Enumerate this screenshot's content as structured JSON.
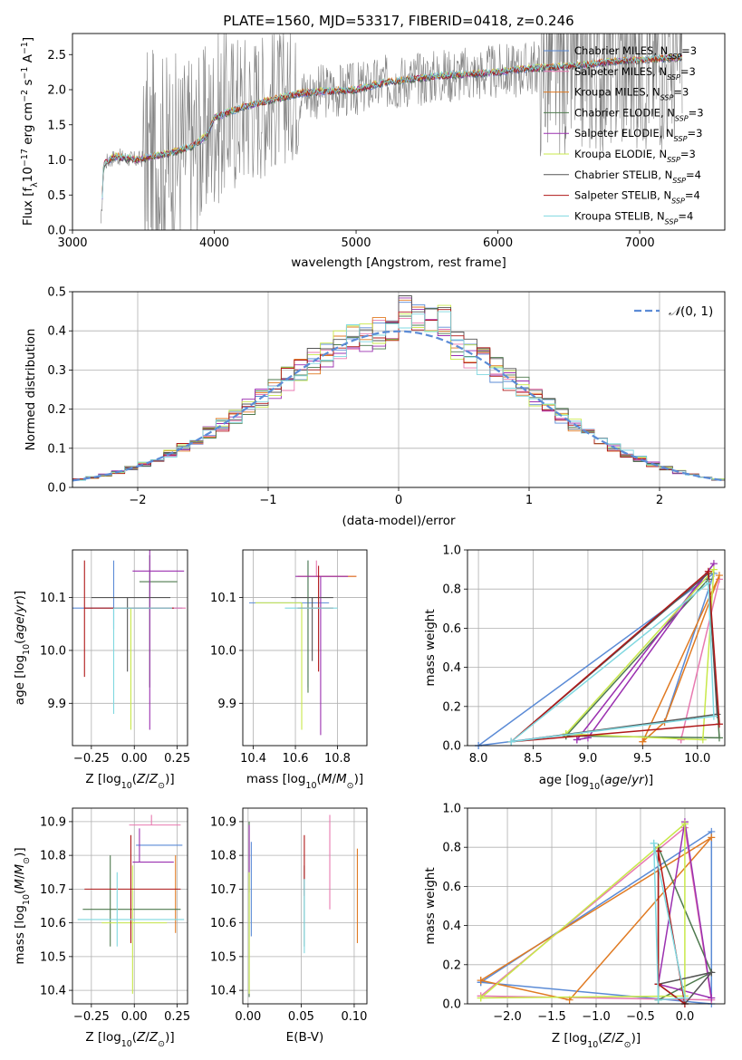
{
  "title": "PLATE=1560, MJD=53317, FIBERID=0418, z=0.246",
  "series_labels": [
    "Chabrier MILES, N_SSP=3",
    "Salpeter MILES, N_SSP=3",
    "Kroupa MILES, N_SSP=3",
    "Chabrier ELODIE, N_SSP=3",
    "Salpeter ELODIE, N_SSP=3",
    "Kroupa ELODIE, N_SSP=3",
    "Chabrier STELIB, N_SSP=4",
    "Salpeter STELIB, N_SSP=4",
    "Kroupa STELIB, N_SSP=4"
  ],
  "series_colors": [
    "#5B8BD6",
    "#E879B0",
    "#E07A22",
    "#4E7A4E",
    "#9B30B0",
    "#C8E84A",
    "#555555",
    "#B01818",
    "#7FD8E0"
  ],
  "chart_data": [
    {
      "id": "spectrum",
      "type": "line",
      "xlabel": "wavelength [Angstrom, rest frame]",
      "ylabel": "Flux [f_λ 10^-17 erg cm^-2 s^-1 A^-1]",
      "xlim": [
        3000,
        7600
      ],
      "ylim": [
        0,
        2.8
      ],
      "xticks": [
        3000,
        4000,
        5000,
        6000,
        7000
      ],
      "yticks": [
        0.0,
        0.5,
        1.0,
        1.5,
        2.0,
        2.5
      ],
      "legend": "upper right",
      "grid": false,
      "model_continuum": {
        "x": [
          3200,
          3220,
          3300,
          3450,
          3500,
          3700,
          3850,
          3950,
          4000,
          4200,
          4400,
          4600,
          4800,
          5000,
          5200,
          5400,
          5600,
          5800,
          6000,
          6200,
          6400,
          6600,
          6800,
          7000,
          7200,
          7300
        ],
        "y": [
          0.0,
          0.95,
          1.05,
          1.0,
          1.02,
          1.1,
          1.2,
          1.35,
          1.6,
          1.75,
          1.85,
          1.95,
          1.98,
          2.0,
          2.1,
          2.15,
          2.2,
          2.22,
          2.25,
          2.3,
          2.32,
          2.35,
          2.4,
          2.42,
          2.45,
          2.45
        ]
      }
    },
    {
      "id": "residuals",
      "type": "histogram",
      "xlabel": "(data-model)/error",
      "ylabel": "Normed distribution",
      "xlim": [
        -2.5,
        2.5
      ],
      "ylim": [
        0,
        0.5
      ],
      "xticks": [
        -2,
        -1,
        0,
        1,
        2
      ],
      "yticks": [
        0.0,
        0.1,
        0.2,
        0.3,
        0.4,
        0.5
      ],
      "grid": true,
      "legend": "upper right",
      "reference_curve": {
        "name": "N(0,1)",
        "mean": 0,
        "sigma": 1
      },
      "bin_width": 0.1
    },
    {
      "id": "age-vs-Z",
      "type": "scatter",
      "xlabel": "Z [log10(Z/Z_sun)]",
      "ylabel": "age [log10(age/yr)]",
      "xlim": [
        -0.36,
        0.31
      ],
      "ylim": [
        9.82,
        10.19
      ],
      "xticks": [
        -0.25,
        0.0,
        0.25
      ],
      "yticks": [
        9.9,
        10.0,
        10.1
      ],
      "grid": true,
      "points": [
        {
          "x": -0.12,
          "y": 10.08,
          "xerr": [
            0.38,
            0.4
          ],
          "yerr": [
            0.04,
            0.09
          ]
        },
        {
          "x": 0.05,
          "y": 10.08,
          "xerr": [
            0.06,
            0.25
          ],
          "yerr": [
            0.0,
            0.0
          ]
        },
        {
          "x": -0.13,
          "y": 10.08,
          "xerr": [
            0.0,
            0.0
          ],
          "yerr": [
            0.0,
            0.0
          ]
        },
        {
          "x": 0.09,
          "y": 10.13,
          "xerr": [
            0.06,
            0.16
          ],
          "yerr": [
            0.2,
            0.05
          ]
        },
        {
          "x": 0.09,
          "y": 10.15,
          "xerr": [
            0.1,
            0.2
          ],
          "yerr": [
            0.3,
            0.04
          ]
        },
        {
          "x": -0.02,
          "y": 10.08,
          "xerr": [
            0.0,
            0.0
          ],
          "yerr": [
            0.23,
            0.0
          ]
        },
        {
          "x": -0.04,
          "y": 10.1,
          "xerr": [
            0.21,
            0.25
          ],
          "yerr": [
            0.14,
            0.0
          ]
        },
        {
          "x": -0.29,
          "y": 10.08,
          "xerr": [
            0.0,
            0.52
          ],
          "yerr": [
            0.13,
            0.09
          ]
        },
        {
          "x": -0.12,
          "y": 10.08,
          "xerr": [
            0.0,
            0.34
          ],
          "yerr": [
            0.2,
            0.0
          ]
        }
      ]
    },
    {
      "id": "age-vs-mass",
      "type": "scatter",
      "xlabel": "mass [log10(M/M_sun)]",
      "ylabel": "",
      "xlim": [
        10.35,
        10.94
      ],
      "ylim": [
        9.82,
        10.19
      ],
      "xticks": [
        10.4,
        10.6,
        10.8
      ],
      "yticks": [
        9.9,
        10.0,
        10.1
      ],
      "grid": true,
      "points": [
        {
          "x": 10.66,
          "y": 10.09,
          "xerr": [
            0.28,
            0.1
          ],
          "yerr": [
            0.16,
            0.08
          ]
        },
        {
          "x": 10.7,
          "y": 10.14,
          "xerr": [
            0.0,
            0.19
          ],
          "yerr": [
            0.0,
            0.03
          ]
        },
        {
          "x": 10.72,
          "y": 10.14,
          "xerr": [
            0.11,
            0.17
          ],
          "yerr": [
            0.0,
            0.0
          ]
        },
        {
          "x": 10.66,
          "y": 10.09,
          "xerr": [
            0.0,
            0.0
          ],
          "yerr": [
            0.17,
            0.08
          ]
        },
        {
          "x": 10.72,
          "y": 10.14,
          "xerr": [
            0.12,
            0.13
          ],
          "yerr": [
            0.3,
            0.0
          ]
        },
        {
          "x": 10.63,
          "y": 10.09,
          "xerr": [
            0.22,
            0.0
          ],
          "yerr": [
            0.24,
            0.0
          ]
        },
        {
          "x": 10.68,
          "y": 10.1,
          "xerr": [
            0.1,
            0.1
          ],
          "yerr": [
            0.12,
            0.0
          ]
        },
        {
          "x": 10.71,
          "y": 10.08,
          "xerr": [
            0.1,
            0.07
          ],
          "yerr": [
            0.12,
            0.08
          ]
        },
        {
          "x": 10.6,
          "y": 10.08,
          "xerr": [
            0.05,
            0.2
          ],
          "yerr": [
            0.0,
            0.0
          ]
        }
      ]
    },
    {
      "id": "weight-vs-age",
      "type": "line",
      "xlabel": "age [log10(age/yr)]",
      "ylabel": "mass weight",
      "xlim": [
        7.9,
        10.25
      ],
      "ylim": [
        0.0,
        1.0
      ],
      "xticks": [
        8.0,
        8.5,
        9.0,
        9.5,
        10.0
      ],
      "yticks": [
        0.0,
        0.2,
        0.4,
        0.6,
        0.8,
        1.0
      ],
      "grid": true,
      "series": [
        {
          "values": [
            [
              8.0,
              0.0
            ],
            [
              9.7,
              0.12
            ],
            [
              10.15,
              0.88
            ],
            [
              8.0,
              0.0
            ]
          ]
        },
        {
          "values": [
            [
              9.85,
              0.03
            ],
            [
              10.2,
              0.85
            ],
            [
              9.85,
              0.03
            ]
          ]
        },
        {
          "values": [
            [
              9.5,
              0.02
            ],
            [
              9.7,
              0.12
            ],
            [
              10.2,
              0.87
            ],
            [
              9.5,
              0.02
            ]
          ]
        },
        {
          "values": [
            [
              8.8,
              0.05
            ],
            [
              10.1,
              0.85
            ],
            [
              10.2,
              0.04
            ],
            [
              8.8,
              0.05
            ]
          ]
        },
        {
          "values": [
            [
              8.9,
              0.03
            ],
            [
              9.0,
              0.04
            ],
            [
              10.15,
              0.93
            ],
            [
              8.9,
              0.03
            ]
          ]
        },
        {
          "values": [
            [
              8.8,
              0.06
            ],
            [
              10.05,
              0.03
            ],
            [
              10.15,
              0.9
            ],
            [
              8.8,
              0.06
            ]
          ]
        },
        {
          "values": [
            [
              8.3,
              0.02
            ],
            [
              10.1,
              0.88
            ],
            [
              10.18,
              0.16
            ],
            [
              8.3,
              0.02
            ]
          ]
        },
        {
          "values": [
            [
              8.3,
              0.02
            ],
            [
              10.1,
              0.89
            ],
            [
              10.2,
              0.11
            ],
            [
              8.3,
              0.02
            ]
          ]
        },
        {
          "values": [
            [
              8.3,
              0.02
            ],
            [
              10.1,
              0.83
            ],
            [
              10.15,
              0.15
            ],
            [
              8.3,
              0.02
            ]
          ]
        }
      ]
    },
    {
      "id": "mass-vs-Z",
      "type": "scatter",
      "xlabel": "Z [log10(Z/Z_sun)]",
      "ylabel": "mass [log10(M/M_sun)]",
      "xlim": [
        -0.36,
        0.31
      ],
      "ylim": [
        10.36,
        10.94
      ],
      "xticks": [
        -0.25,
        0.0,
        0.25
      ],
      "yticks": [
        10.4,
        10.5,
        10.6,
        10.7,
        10.8,
        10.9
      ],
      "grid": true,
      "points": [
        {
          "x": 0.14,
          "y": 10.83,
          "xerr": [
            0.13,
            0.14
          ],
          "yerr": [
            0.0,
            0.0
          ]
        },
        {
          "x": 0.1,
          "y": 10.89,
          "xerr": [
            0.13,
            0.17
          ],
          "yerr": [
            0.0,
            0.03
          ]
        },
        {
          "x": 0.24,
          "y": 10.8,
          "xerr": [
            0.0,
            0.0
          ],
          "yerr": [
            0.23,
            0.0
          ]
        },
        {
          "x": -0.14,
          "y": 10.64,
          "xerr": [
            0.16,
            0.41
          ],
          "yerr": [
            0.11,
            0.16
          ]
        },
        {
          "x": 0.03,
          "y": 10.78,
          "xerr": [
            0.04,
            0.2
          ],
          "yerr": [
            0.0,
            0.1
          ]
        },
        {
          "x": -0.01,
          "y": 10.6,
          "xerr": [
            0.18,
            0.2
          ],
          "yerr": [
            0.21,
            0.17
          ]
        },
        {
          "x": -0.02,
          "y": 10.64,
          "xerr": [
            0.0,
            0.0
          ],
          "yerr": [
            0.0,
            0.0
          ]
        },
        {
          "x": -0.02,
          "y": 10.7,
          "xerr": [
            0.27,
            0.29
          ],
          "yerr": [
            0.16,
            0.16
          ]
        },
        {
          "x": -0.1,
          "y": 10.61,
          "xerr": [
            0.23,
            0.39
          ],
          "yerr": [
            0.08,
            0.14
          ]
        }
      ]
    },
    {
      "id": "mass-vs-ebv",
      "type": "scatter",
      "xlabel": "E(B-V)",
      "ylabel": "",
      "xlim": [
        -0.005,
        0.112
      ],
      "ylim": [
        10.36,
        10.94
      ],
      "xticks": [
        0.0,
        0.05,
        0.1
      ],
      "yticks": [
        10.4,
        10.5,
        10.6,
        10.7,
        10.8,
        10.9
      ],
      "grid": true,
      "points": [
        {
          "x": 0.003,
          "y": 10.7,
          "yerr": [
            0.14,
            0.14
          ]
        },
        {
          "x": 0.077,
          "y": 10.78,
          "yerr": [
            0.14,
            0.14
          ]
        },
        {
          "x": 0.103,
          "y": 10.68,
          "yerr": [
            0.14,
            0.14
          ]
        },
        {
          "x": 0.001,
          "y": 10.64,
          "yerr": [
            0.26,
            0.26
          ]
        },
        {
          "x": 0.001,
          "y": 10.79,
          "yerr": [
            0.1,
            0.1
          ]
        },
        {
          "x": 0.001,
          "y": 10.57,
          "yerr": [
            0.18,
            0.18
          ]
        },
        {
          "x": 0.053,
          "y": 10.65,
          "yerr": [
            0.12,
            0.12
          ]
        },
        {
          "x": 0.053,
          "y": 10.77,
          "yerr": [
            0.09,
            0.09
          ]
        },
        {
          "x": 0.053,
          "y": 10.62,
          "yerr": [
            0.11,
            0.11
          ]
        }
      ]
    },
    {
      "id": "weight-vs-Z",
      "type": "line",
      "xlabel": "Z [log10(Z/Z_sun)]",
      "ylabel": "mass weight",
      "xlim": [
        -2.45,
        0.45
      ],
      "ylim": [
        0.0,
        1.0
      ],
      "xticks": [
        -2.0,
        -1.5,
        -1.0,
        -0.5,
        0.0
      ],
      "yticks": [
        0.0,
        0.2,
        0.4,
        0.6,
        0.8,
        1.0
      ],
      "grid": true,
      "series": [
        {
          "values": [
            [
              -2.3,
              0.11
            ],
            [
              0.3,
              0.88
            ],
            [
              0.3,
              0.0
            ],
            [
              -2.3,
              0.11
            ]
          ]
        },
        {
          "values": [
            [
              -2.3,
              0.04
            ],
            [
              0.0,
              0.9
            ],
            [
              0.3,
              0.02
            ],
            [
              -2.3,
              0.04
            ]
          ]
        },
        {
          "values": [
            [
              -2.3,
              0.12
            ],
            [
              -1.3,
              0.02
            ],
            [
              0.3,
              0.85
            ],
            [
              -2.3,
              0.12
            ]
          ]
        },
        {
          "values": [
            [
              -0.3,
              0.02
            ],
            [
              -0.3,
              0.8
            ],
            [
              0.3,
              0.16
            ],
            [
              -0.3,
              0.02
            ]
          ]
        },
        {
          "values": [
            [
              -0.3,
              0.1
            ],
            [
              0.0,
              0.93
            ],
            [
              0.3,
              0.03
            ],
            [
              -0.3,
              0.1
            ]
          ]
        },
        {
          "values": [
            [
              -2.3,
              0.03
            ],
            [
              0.0,
              0.92
            ],
            [
              0.0,
              0.04
            ],
            [
              -2.3,
              0.03
            ]
          ]
        },
        {
          "values": [
            [
              -0.3,
              0.1
            ],
            [
              0.0,
              0.0
            ],
            [
              0.3,
              0.16
            ],
            [
              -0.3,
              0.1
            ]
          ]
        },
        {
          "values": [
            [
              -0.3,
              0.78
            ],
            [
              -0.3,
              0.1
            ],
            [
              0.0,
              0.0
            ],
            [
              -0.3,
              0.78
            ]
          ]
        },
        {
          "values": [
            [
              -0.35,
              0.82
            ],
            [
              -0.3,
              0.02
            ],
            [
              0.0,
              0.03
            ],
            [
              -0.35,
              0.82
            ]
          ]
        }
      ]
    }
  ]
}
